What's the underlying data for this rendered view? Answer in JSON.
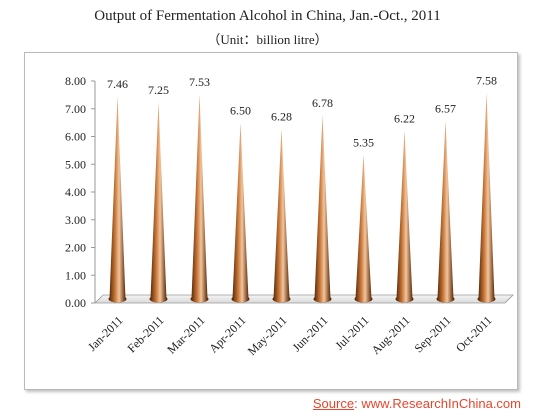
{
  "header": {
    "title": "Output of Fermentation Alcohol in China, Jan.-Oct., 2011",
    "subtitle": "（Unit：billion litre）"
  },
  "source": {
    "label": "Source",
    "separator": ":",
    "value": "www.ResearchInChina.com"
  },
  "colors": {
    "cone_dark": "#5a2a08",
    "cone_mid": "#c9783a",
    "cone_light": "#f3c59c",
    "source_text": "#e8452c"
  },
  "chart_data": {
    "type": "bar",
    "bar_shape": "cone",
    "title": "Output of Fermentation Alcohol in China, Jan.-Oct., 2011",
    "subtitle": "（Unit：billion litre）",
    "categories": [
      "Jan-2011",
      "Feb-2011",
      "Mar-2011",
      "Apr-2011",
      "May-2011",
      "Jun-2011",
      "Jul-2011",
      "Aug-2011",
      "Sep-2011",
      "Oct-2011"
    ],
    "values": [
      7.46,
      7.25,
      7.53,
      6.5,
      6.28,
      6.78,
      5.35,
      6.22,
      6.57,
      7.58
    ],
    "data_labels": [
      "7.46",
      "7.25",
      "7.53",
      "6.50",
      "6.28",
      "6.78",
      "5.35",
      "6.22",
      "6.57",
      "7.58"
    ],
    "y_ticks": [
      "0.00",
      "1.00",
      "2.00",
      "3.00",
      "4.00",
      "5.00",
      "6.00",
      "7.00",
      "8.00"
    ],
    "ylim": [
      0,
      8
    ],
    "xlabel": "",
    "ylabel": "",
    "grid": false,
    "legend": "none"
  }
}
